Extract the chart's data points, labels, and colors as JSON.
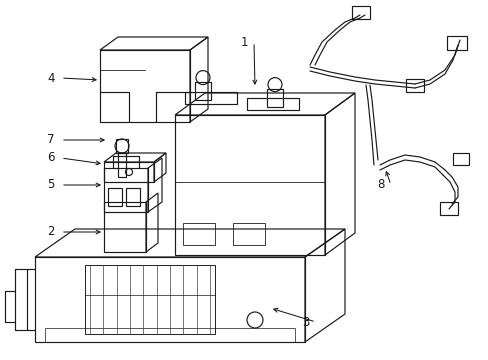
{
  "bg_color": "#ffffff",
  "line_color": "#1a1a1a",
  "lw": 0.85,
  "fig_w": 4.89,
  "fig_h": 3.6,
  "dpi": 100
}
